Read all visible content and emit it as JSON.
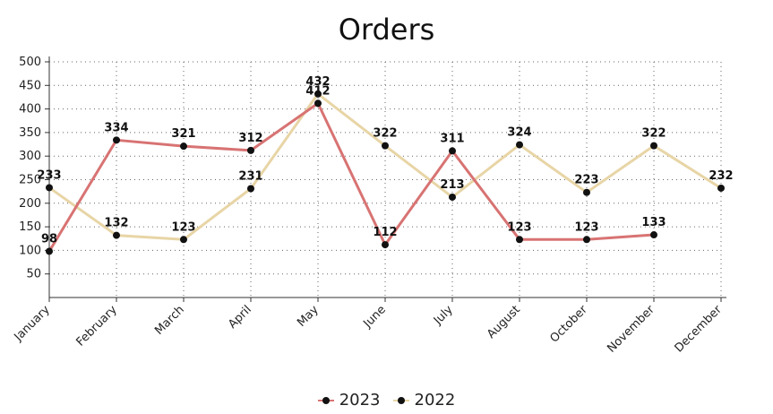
{
  "chart_data": {
    "type": "line",
    "title": "Orders",
    "categories": [
      "January",
      "February",
      "March",
      "April",
      "May",
      "June",
      "July",
      "August",
      "October",
      "November",
      "December"
    ],
    "ylim": [
      0,
      500
    ],
    "yticks": [
      50,
      100,
      150,
      200,
      250,
      300,
      350,
      400,
      450,
      500
    ],
    "grid": true,
    "legend_position": "bottom",
    "series": [
      {
        "name": "2023",
        "color": "#d87373",
        "values": [
          98,
          334,
          321,
          312,
          412,
          112,
          311,
          123,
          123,
          133,
          null
        ]
      },
      {
        "name": "2022",
        "color": "#e8d5a6",
        "values": [
          233,
          132,
          123,
          231,
          432,
          322,
          213,
          324,
          223,
          322,
          232
        ]
      }
    ]
  }
}
